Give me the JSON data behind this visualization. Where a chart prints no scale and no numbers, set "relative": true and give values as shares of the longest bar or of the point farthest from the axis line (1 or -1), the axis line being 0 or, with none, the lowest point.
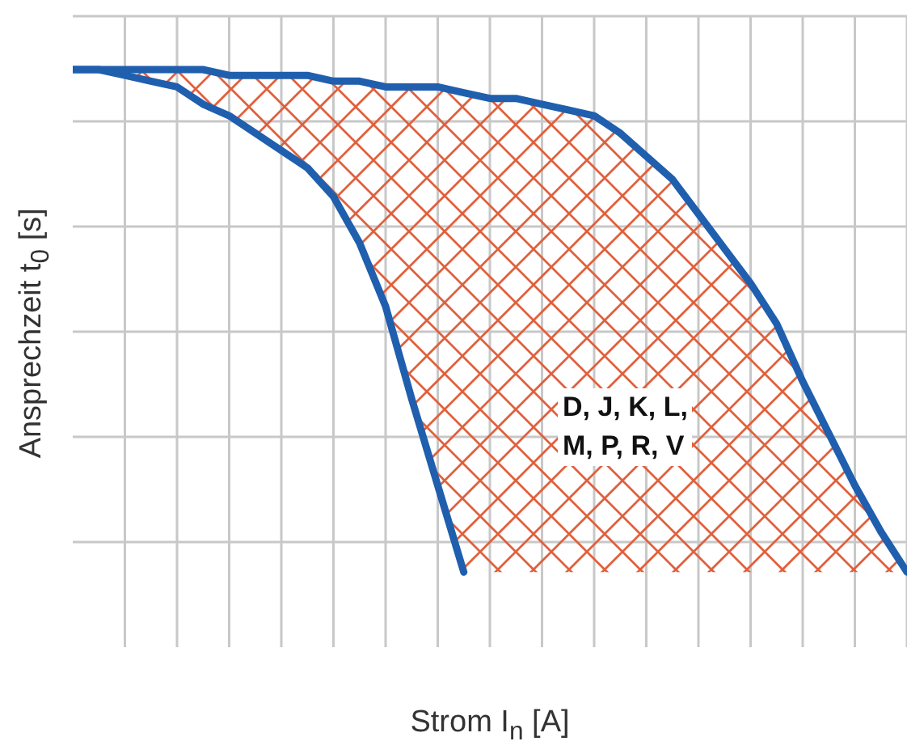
{
  "chart_data": {
    "type": "line",
    "relative": true,
    "xlabel": "Strom I$_{n}$ [A]",
    "ylabel": "Ansprechzeit t$_{0}$ [s]",
    "grid": true,
    "annotations": [
      "D, J, K, L, M, P, R, V"
    ],
    "categories": [
      null,
      null,
      null,
      null,
      null,
      null,
      null,
      null,
      null,
      null,
      null,
      null,
      null,
      null,
      null,
      null,
      null,
      null,
      null,
      null,
      null,
      null,
      null,
      null,
      null,
      null,
      null,
      null,
      null,
      null,
      null,
      null,
      null
    ],
    "series": [
      {
        "color": "#1f5fae",
        "values": [
          1.0,
          1.0,
          0.99,
          0.98,
          0.97,
          0.94,
          0.92,
          0.89,
          0.86,
          0.83,
          0.78,
          0.7,
          0.59,
          0.43,
          0.28,
          0.13,
          null,
          null,
          null,
          null,
          null,
          null,
          null,
          null,
          null,
          null,
          null,
          null,
          null,
          null,
          null,
          null,
          null
        ]
      },
      {
        "color": "#1f5fae",
        "values": [
          1.0,
          1.0,
          1.0,
          1.0,
          1.0,
          1.0,
          0.99,
          0.99,
          0.99,
          0.99,
          0.98,
          0.98,
          0.97,
          0.97,
          0.97,
          0.96,
          0.95,
          0.95,
          0.94,
          0.93,
          0.92,
          0.89,
          0.85,
          0.81,
          0.75,
          0.69,
          0.63,
          0.56,
          0.46,
          0.37,
          0.28,
          0.2,
          0.13
        ],
        "upper": [
          1.0,
          1.0,
          1.0,
          1.0,
          1.0,
          1.0,
          0.99,
          0.99,
          0.99,
          0.99,
          0.98,
          0.98,
          0.97,
          0.97,
          0.97,
          0.96,
          0.95,
          0.95,
          0.94,
          0.93,
          0.92,
          0.89,
          0.85,
          0.81,
          0.75,
          0.69,
          0.63,
          0.56,
          0.46,
          0.37,
          0.28,
          0.2,
          0.13
        ],
        "lower": [
          1.0,
          1.0,
          0.99,
          0.98,
          0.97,
          0.94,
          0.92,
          0.89,
          0.86,
          0.83,
          0.78,
          0.7,
          0.59,
          0.43,
          0.28,
          0.13,
          0.13,
          0.13,
          0.13,
          0.13,
          0.13,
          0.13,
          0.13,
          0.13,
          0.13,
          0.13,
          0.13,
          0.13,
          0.13,
          0.13,
          0.13,
          0.13,
          0.13
        ]
      }
    ]
  }
}
